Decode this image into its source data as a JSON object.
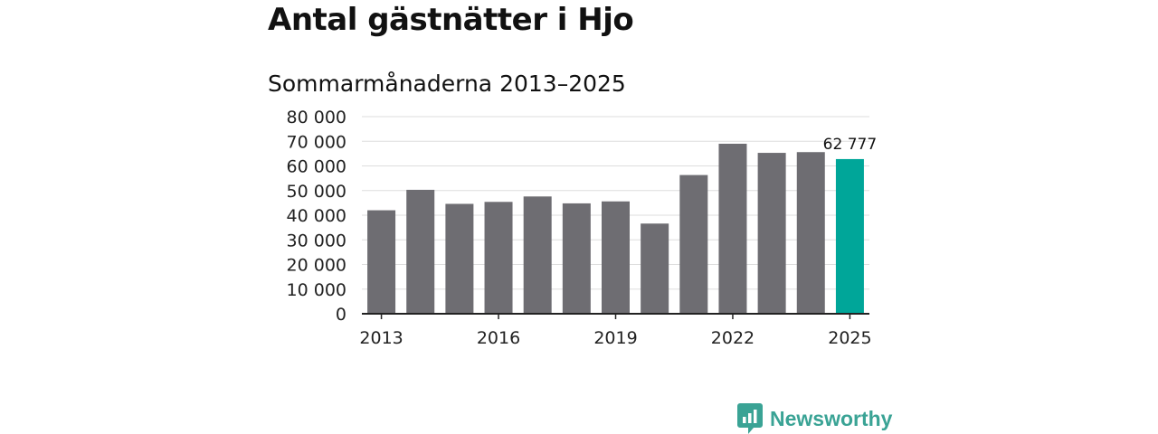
{
  "title": "Antal gästnätter i Hjo",
  "subtitle": "Sommarmånaderna 2013–2025",
  "brand": {
    "name": "Newsworthy",
    "icon": "newsworthy-logo-icon"
  },
  "colors": {
    "bar": "#6e6d72",
    "highlight": "#00a699",
    "grid": "#dddddd",
    "axis": "#222222"
  },
  "chart_data": {
    "type": "bar",
    "x": [
      2013,
      2014,
      2015,
      2016,
      2017,
      2018,
      2019,
      2020,
      2021,
      2022,
      2023,
      2024,
      2025
    ],
    "values": [
      42000,
      50300,
      44600,
      45400,
      47600,
      44800,
      45600,
      36600,
      56300,
      69000,
      65300,
      65600,
      62777
    ],
    "highlight_index": 12,
    "data_labels": [
      {
        "index": 12,
        "text": "62 777"
      }
    ],
    "x_tick_labels": [
      "2013",
      "2016",
      "2019",
      "2022",
      "2025"
    ],
    "y_tick_labels": [
      "0",
      "10 000",
      "20 000",
      "30 000",
      "40 000",
      "50 000",
      "60 000",
      "70 000",
      "80 000"
    ],
    "ylim": [
      0,
      80000
    ],
    "grid": true
  }
}
